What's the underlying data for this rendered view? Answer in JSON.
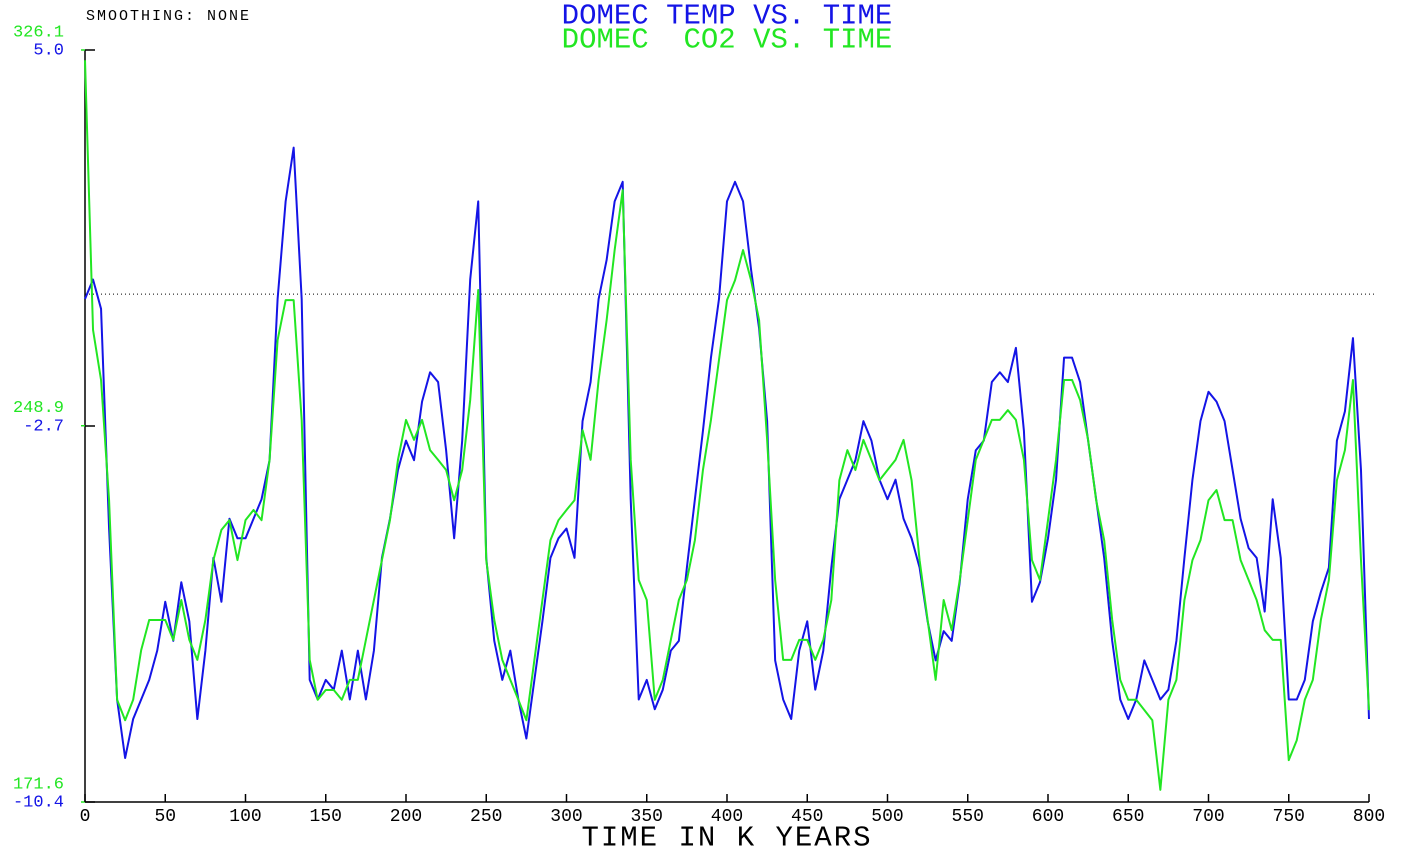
{
  "chart_data": {
    "type": "line",
    "annotation": "SMOOTHING: NONE",
    "xlabel": "TIME IN K YEARS",
    "xlim": [
      0,
      800
    ],
    "xticks": [
      0,
      50,
      100,
      150,
      200,
      250,
      300,
      350,
      400,
      450,
      500,
      550,
      600,
      650,
      700,
      750,
      800
    ],
    "ylim": [
      -10.4,
      5.0
    ],
    "yticks": [
      {
        "value": 5.0,
        "label": "5.0"
      },
      -2.7,
      -10.4
    ],
    "y2lim": [
      171.6,
      326.1
    ],
    "y2ticks": [
      326.1,
      248.9,
      171.6
    ],
    "reference_line": 0,
    "x": [
      0,
      5,
      10,
      15,
      20,
      25,
      30,
      35,
      40,
      45,
      50,
      55,
      60,
      65,
      70,
      75,
      80,
      85,
      90,
      95,
      100,
      105,
      110,
      115,
      120,
      125,
      130,
      135,
      140,
      145,
      150,
      155,
      160,
      165,
      170,
      175,
      180,
      185,
      190,
      195,
      200,
      205,
      210,
      215,
      220,
      225,
      230,
      235,
      240,
      245,
      250,
      255,
      260,
      265,
      270,
      275,
      280,
      285,
      290,
      295,
      300,
      305,
      310,
      315,
      320,
      325,
      330,
      335,
      340,
      345,
      350,
      355,
      360,
      365,
      370,
      375,
      380,
      385,
      390,
      395,
      400,
      405,
      410,
      415,
      420,
      425,
      430,
      435,
      440,
      445,
      450,
      455,
      460,
      465,
      470,
      475,
      480,
      485,
      490,
      495,
      500,
      505,
      510,
      515,
      520,
      525,
      530,
      535,
      540,
      545,
      550,
      555,
      560,
      565,
      570,
      575,
      580,
      585,
      590,
      595,
      600,
      605,
      610,
      615,
      620,
      625,
      630,
      635,
      640,
      645,
      650,
      655,
      660,
      665,
      670,
      675,
      680,
      685,
      690,
      695,
      700,
      705,
      710,
      715,
      720,
      725,
      730,
      735,
      740,
      745,
      750,
      755,
      760,
      765,
      770,
      775,
      780,
      785,
      790,
      795,
      800
    ],
    "series": [
      {
        "name": "DOMEC TEMP VS. TIME",
        "color": "#1414e6",
        "axis": "y",
        "values": [
          -0.1,
          0.3,
          -0.3,
          -4.8,
          -8.3,
          -9.5,
          -8.7,
          -8.3,
          -7.9,
          -7.3,
          -6.3,
          -7.1,
          -5.9,
          -6.7,
          -8.7,
          -7.3,
          -5.4,
          -6.3,
          -4.6,
          -5.0,
          -5.0,
          -4.6,
          -4.2,
          -3.4,
          -0.1,
          1.9,
          3.0,
          -0.1,
          -7.9,
          -8.3,
          -7.9,
          -8.1,
          -7.3,
          -8.3,
          -7.3,
          -8.3,
          -7.3,
          -5.4,
          -4.6,
          -3.6,
          -3.0,
          -3.4,
          -2.2,
          -1.6,
          -1.8,
          -3.2,
          -5.0,
          -3.0,
          0.3,
          1.9,
          -5.4,
          -7.1,
          -7.9,
          -7.3,
          -8.3,
          -9.1,
          -7.9,
          -6.7,
          -5.4,
          -5.0,
          -4.8,
          -5.4,
          -2.6,
          -1.8,
          -0.1,
          0.7,
          1.9,
          2.3,
          -4.2,
          -8.3,
          -7.9,
          -8.5,
          -8.1,
          -7.3,
          -7.1,
          -5.6,
          -4.2,
          -2.8,
          -1.3,
          -0.1,
          1.9,
          2.3,
          1.9,
          0.5,
          -0.7,
          -2.6,
          -7.5,
          -8.3,
          -8.7,
          -7.3,
          -6.7,
          -8.1,
          -7.3,
          -5.6,
          -4.2,
          -3.8,
          -3.4,
          -2.6,
          -3.0,
          -3.8,
          -4.2,
          -3.8,
          -4.6,
          -5.0,
          -5.6,
          -6.7,
          -7.5,
          -6.9,
          -7.1,
          -5.9,
          -4.2,
          -3.2,
          -3.0,
          -1.8,
          -1.6,
          -1.8,
          -1.1,
          -2.8,
          -6.3,
          -5.9,
          -5.0,
          -3.8,
          -1.3,
          -1.3,
          -1.8,
          -3.0,
          -4.2,
          -5.4,
          -7.1,
          -8.3,
          -8.7,
          -8.3,
          -7.5,
          -7.9,
          -8.3,
          -8.1,
          -7.1,
          -5.4,
          -3.8,
          -2.6,
          -2.0,
          -2.2,
          -2.6,
          -3.6,
          -4.6,
          -5.2,
          -5.4,
          -6.5,
          -4.2,
          -5.4,
          -8.3,
          -8.3,
          -7.9,
          -6.7,
          -6.1,
          -5.6,
          -3.0,
          -2.4,
          -0.9,
          -3.6,
          -8.7
        ]
      },
      {
        "name": "DOMEC  CO2 VS. TIME",
        "color": "#22e622",
        "axis": "y2",
        "values": [
          324.0,
          268.6,
          258.3,
          233.6,
          192.6,
          188.4,
          192.6,
          202.8,
          209.0,
          209.0,
          209.0,
          204.9,
          213.1,
          204.9,
          200.8,
          209.0,
          221.3,
          227.5,
          229.5,
          221.3,
          229.5,
          231.6,
          229.5,
          241.9,
          266.5,
          274.7,
          274.7,
          250.1,
          200.8,
          192.6,
          194.6,
          194.6,
          192.6,
          196.7,
          196.7,
          204.9,
          213.1,
          221.3,
          229.5,
          241.9,
          250.1,
          246.0,
          250.1,
          243.9,
          241.9,
          239.8,
          233.6,
          239.8,
          254.2,
          276.8,
          221.3,
          209.0,
          200.8,
          196.7,
          192.6,
          188.4,
          200.8,
          213.1,
          225.4,
          229.5,
          231.6,
          233.6,
          248.0,
          241.9,
          258.3,
          270.6,
          285.0,
          297.3,
          241.9,
          217.2,
          213.1,
          192.6,
          196.7,
          204.9,
          213.1,
          217.2,
          225.4,
          239.8,
          250.1,
          262.4,
          274.7,
          278.8,
          285.0,
          278.8,
          270.6,
          246.0,
          217.2,
          200.8,
          200.8,
          204.9,
          204.9,
          200.8,
          204.9,
          213.1,
          237.7,
          243.9,
          239.8,
          246.0,
          241.9,
          237.7,
          239.8,
          241.9,
          246.0,
          237.7,
          221.3,
          209.0,
          196.7,
          213.1,
          206.9,
          217.2,
          229.5,
          241.9,
          246.0,
          250.1,
          250.1,
          252.1,
          250.1,
          241.9,
          221.3,
          217.2,
          229.5,
          241.9,
          258.3,
          258.3,
          254.2,
          246.0,
          233.6,
          225.4,
          209.0,
          196.7,
          192.6,
          192.6,
          190.5,
          188.4,
          174.1,
          192.6,
          196.7,
          213.1,
          221.3,
          225.4,
          233.6,
          235.7,
          229.5,
          229.5,
          221.3,
          217.2,
          213.1,
          206.9,
          204.9,
          204.9,
          180.2,
          184.3,
          192.6,
          196.7,
          209.0,
          217.2,
          237.7,
          243.9,
          258.3,
          221.3,
          190.5
        ]
      }
    ]
  }
}
